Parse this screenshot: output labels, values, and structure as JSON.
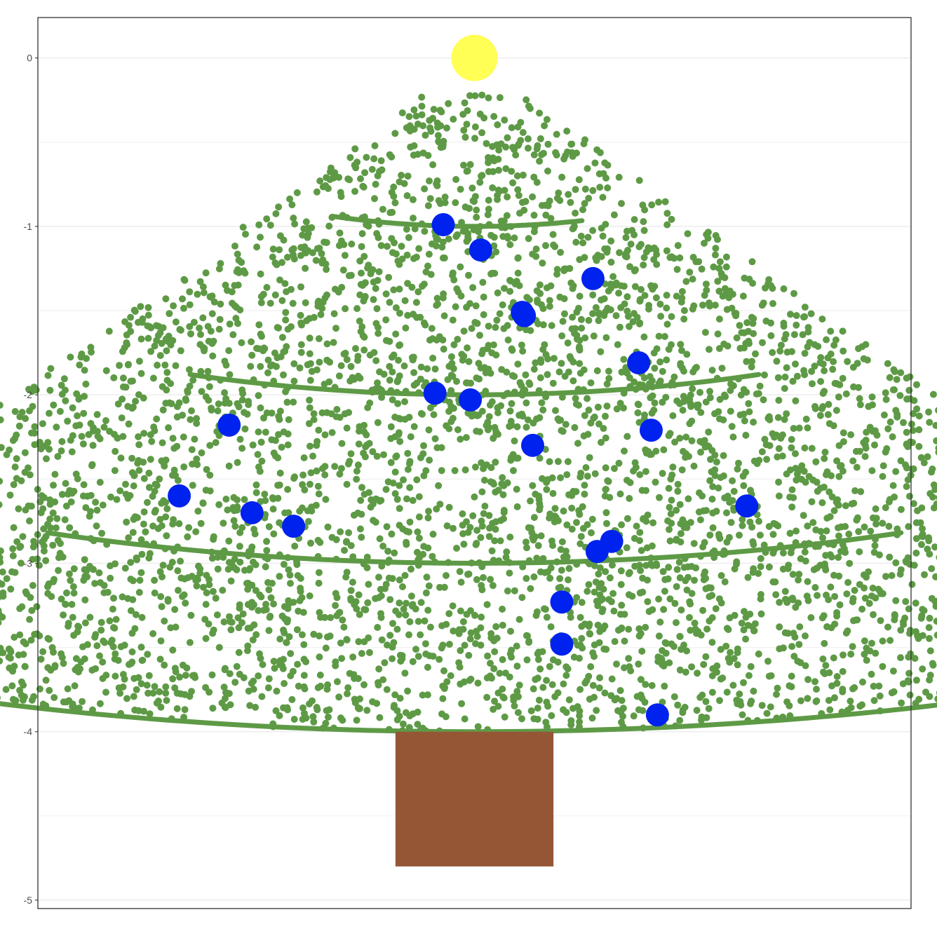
{
  "chart_data": {
    "type": "scatter",
    "title": "",
    "xlabel": "",
    "ylabel": "",
    "ylim": [
      -5.05,
      0.24
    ],
    "xlim": [
      -1.05,
      1.05
    ],
    "y_ticks": [
      "0",
      "-1",
      "-2",
      "-3",
      "-4",
      "-5"
    ],
    "grid": "horizontal major and minor lines",
    "legend": "none",
    "colors": {
      "needles": "#5e9a46",
      "ornaments": "#0022ee",
      "star": "#ffff55",
      "trunk": "#955636",
      "grid": "#ebebeb",
      "border": "#333333"
    },
    "tree": {
      "apex": [
        0.0,
        0.0
      ],
      "cone_half_angle_deg": 20,
      "radius": 4.0,
      "needle_point_count": 5000
    },
    "garlands": [
      {
        "radius": 1.0,
        "angle_deg": [
          -20,
          15
        ]
      },
      {
        "radius": 2.0,
        "angle_deg": [
          -20,
          20
        ]
      },
      {
        "radius": 3.0,
        "angle_deg": [
          -20,
          20
        ]
      },
      {
        "radius": 4.0,
        "angle_deg": [
          -30,
          30
        ]
      }
    ],
    "ornaments": [
      {
        "x": -0.075,
        "y": -0.99
      },
      {
        "x": 0.015,
        "y": -1.14
      },
      {
        "x": 0.285,
        "y": -1.31
      },
      {
        "x": 0.115,
        "y": -1.51
      },
      {
        "x": 0.12,
        "y": -1.53
      },
      {
        "x": 0.395,
        "y": -1.81
      },
      {
        "x": -0.095,
        "y": -1.99
      },
      {
        "x": -0.01,
        "y": -2.03
      },
      {
        "x": -0.59,
        "y": -2.18
      },
      {
        "x": 0.425,
        "y": -2.21
      },
      {
        "x": 0.14,
        "y": -2.3
      },
      {
        "x": -0.71,
        "y": -2.6
      },
      {
        "x": -0.535,
        "y": -2.7
      },
      {
        "x": -0.435,
        "y": -2.78
      },
      {
        "x": 0.655,
        "y": -2.66
      },
      {
        "x": 0.33,
        "y": -2.87
      },
      {
        "x": 0.295,
        "y": -2.93
      },
      {
        "x": 0.21,
        "y": -3.23
      },
      {
        "x": 0.21,
        "y": -3.48
      },
      {
        "x": 0.44,
        "y": -3.9
      }
    ],
    "star": {
      "x": 0.0,
      "y": 0.0
    },
    "trunk": {
      "x": [
        -0.19,
        0.19
      ],
      "y": [
        -4.8,
        -4.0
      ]
    }
  }
}
